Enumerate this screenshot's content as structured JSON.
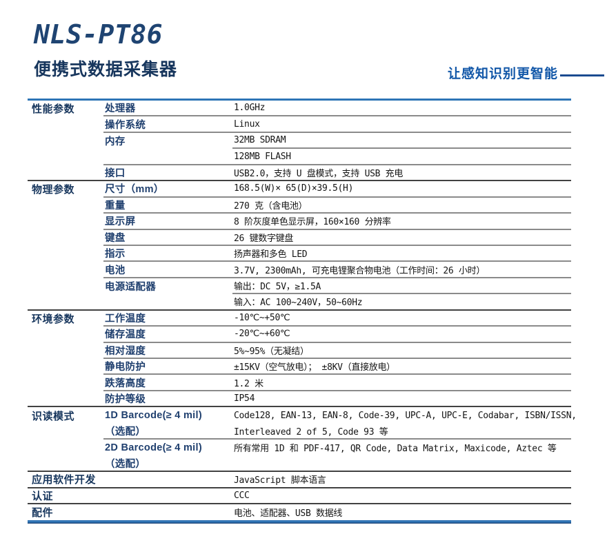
{
  "header": {
    "model": "NLS-PT86",
    "product_name": "便携式数据采集器",
    "tagline": "让感知识别更智能"
  },
  "colors": {
    "accent_navy": "#17365d",
    "accent_blue": "#2e75b6",
    "tagline_blue": "#1257a8"
  },
  "rows": [
    {
      "cat": "性能参数",
      "attr": "处理器",
      "val": "1.0GHz"
    },
    {
      "cat": "",
      "attr": "操作系统",
      "val": "Linux"
    },
    {
      "cat": "",
      "attr": "内存",
      "val": "32MB SDRAM"
    },
    {
      "cat": "",
      "attr": "",
      "val": "128MB FLASH"
    },
    {
      "cat": "",
      "attr": "接口",
      "val": "USB2.0，支持 U 盘模式，支持 USB 充电"
    },
    {
      "cat": "物理参数",
      "attr": "尺寸（mm）",
      "val": "168.5(W)× 65(D)×39.5(H)"
    },
    {
      "cat": "",
      "attr": "重量",
      "val": "270 克（含电池）"
    },
    {
      "cat": "",
      "attr": "显示屏",
      "val": "8 阶灰度单色显示屏，160×160 分辨率"
    },
    {
      "cat": "",
      "attr": "键盘",
      "val": "26 键数字键盘"
    },
    {
      "cat": "",
      "attr": "指示",
      "val": "扬声器和多色 LED"
    },
    {
      "cat": "",
      "attr": "电池",
      "val": "3.7V, 2300mAh, 可充电锂聚合物电池（工作时间：26 小时）"
    },
    {
      "cat": "",
      "attr": "电源适配器",
      "val": "输出：DC 5V，≥1.5A"
    },
    {
      "cat": "",
      "attr": "",
      "val": "输入：AC 100~240V，50~60Hz"
    },
    {
      "cat": "环境参数",
      "attr": "工作温度",
      "val": "-10℃~+50℃"
    },
    {
      "cat": "",
      "attr": "储存温度",
      "val": "-20℃~+60℃"
    },
    {
      "cat": "",
      "attr": "相对湿度",
      "val": "5%~95%（无凝结）"
    },
    {
      "cat": "",
      "attr": "静电防护",
      "val": "±15KV（空气放电）； ±8KV（直接放电）"
    },
    {
      "cat": "",
      "attr": "跌落高度",
      "val": "1.2 米"
    },
    {
      "cat": "",
      "attr": "防护等级",
      "val": "IP54"
    },
    {
      "cat": "识读模式",
      "attr": "1D Barcode(≥ 4 mil)",
      "val": "Code128, EAN-13, EAN-8, Code-39, UPC-A, UPC-E, Codabar, ISBN/ISSN,"
    },
    {
      "cat": "",
      "attr": "（选配）",
      "val": "Interleaved 2 of 5, Code 93 等"
    },
    {
      "cat": "",
      "attr": "2D Barcode(≥ 4 mil)",
      "val": "所有常用 1D 和 PDF-417, QR Code, Data Matrix, Maxicode, Aztec 等"
    },
    {
      "cat": "",
      "attr": "（选配）",
      "val": ""
    },
    {
      "cat": "应用软件开发",
      "attr": "",
      "val": "JavaScript 脚本语言"
    },
    {
      "cat": "认证",
      "attr": "",
      "val": "CCC"
    },
    {
      "cat": "配件",
      "attr": "",
      "val": "电池、适配器、USB 数据线"
    }
  ]
}
